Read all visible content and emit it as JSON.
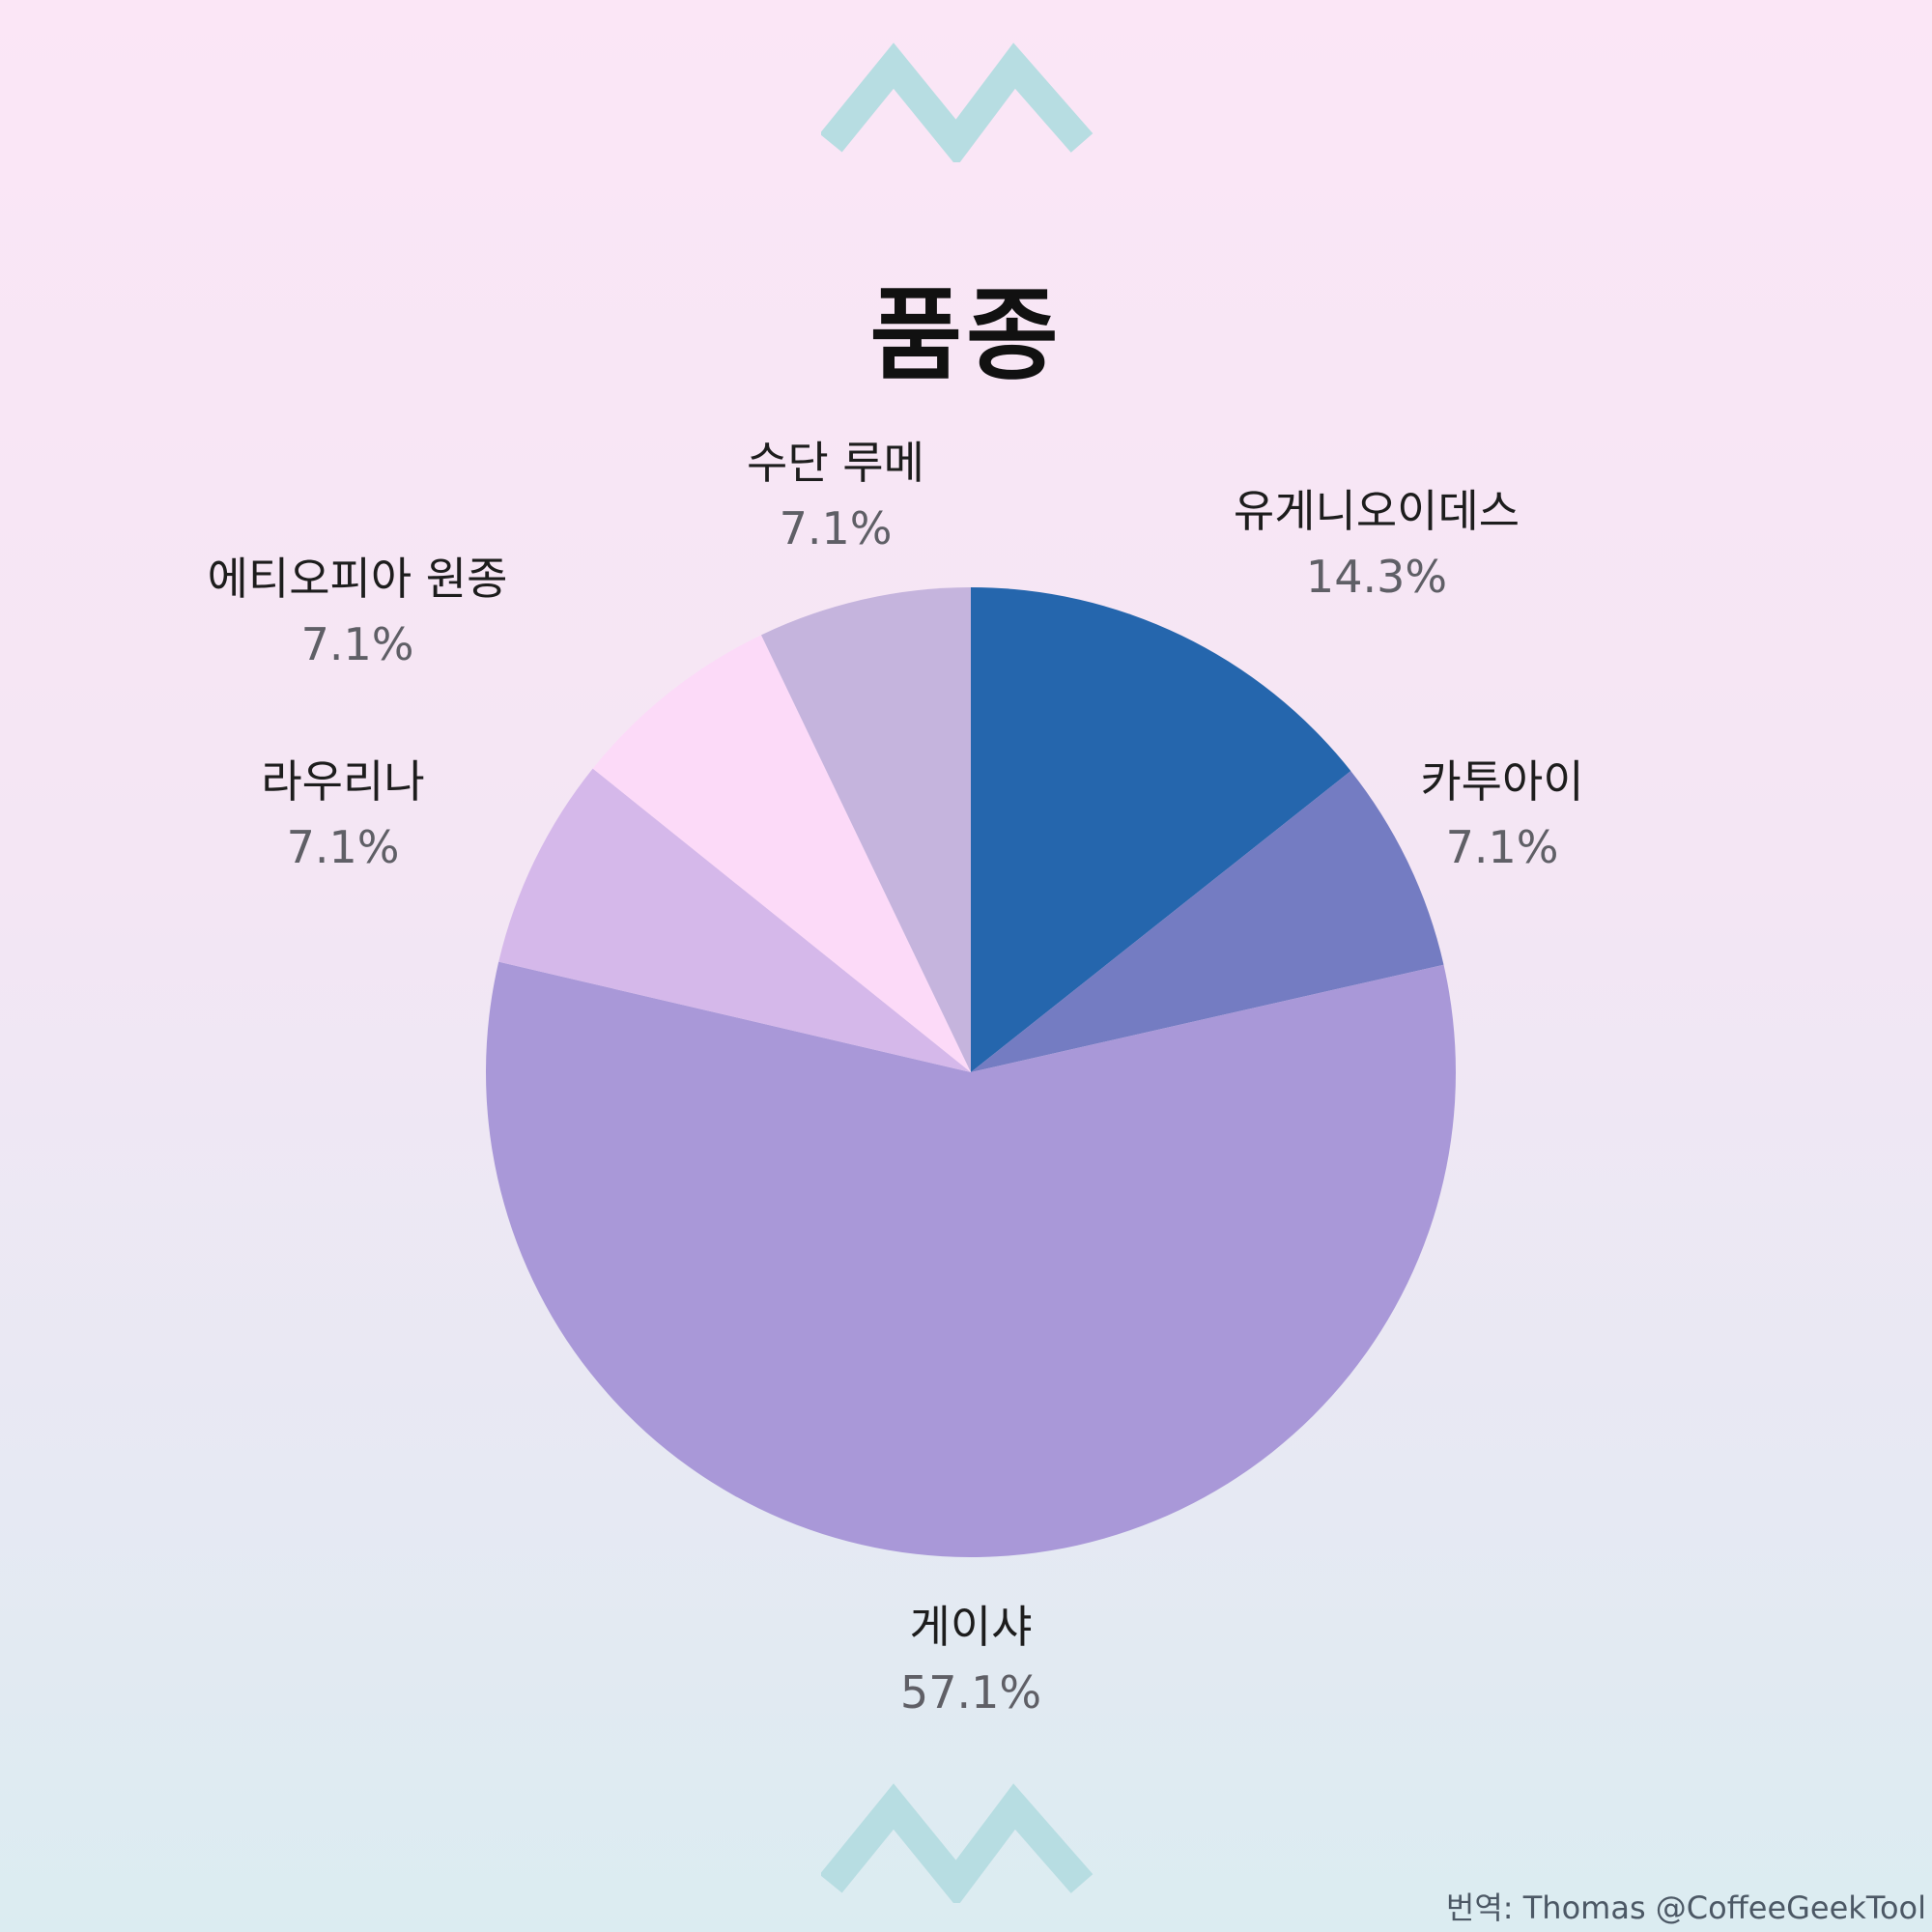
{
  "title": "품종",
  "credit": "번역: Thomas @CoffeeGeekTool",
  "chart_data": {
    "type": "pie",
    "title": "품종",
    "start": "top",
    "direction": "clockwise",
    "slices": [
      {
        "label": "유게니오이데스",
        "value": 14.3,
        "value_label": "14.3%",
        "color": "#2566ad"
      },
      {
        "label": "카투아이",
        "value": 7.1,
        "value_label": "7.1%",
        "color": "#747cc2"
      },
      {
        "label": "게이샤",
        "value": 57.1,
        "value_label": "57.1%",
        "color": "#a998d8"
      },
      {
        "label": "라우리나",
        "value": 7.1,
        "value_label": "7.1%",
        "color": "#d5b8ea"
      },
      {
        "label": "에티오피아 원종",
        "value": 7.1,
        "value_label": "7.1%",
        "color": "#fcdaf8"
      },
      {
        "label": "수단 루메",
        "value": 7.1,
        "value_label": "7.1%",
        "color": "#c5b4dd"
      }
    ]
  }
}
